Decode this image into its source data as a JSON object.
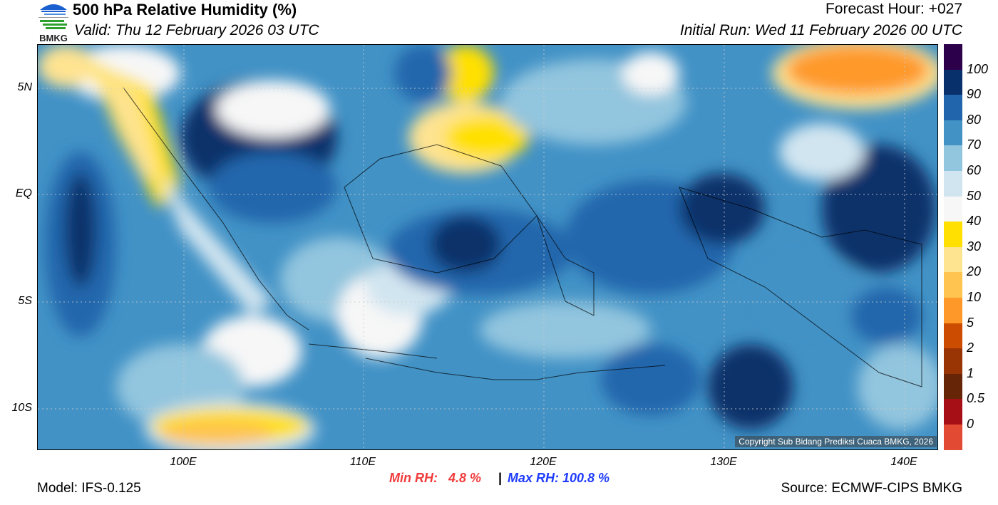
{
  "header": {
    "title": "500 hPa Relative Humidity (%)",
    "valid": "Valid: Thu 12 February 2026 03 UTC",
    "forecast_hour": "Forecast Hour: +027",
    "initial_run": "Initial Run: Wed 11 February 2026 00 UTC",
    "logo_text": "BMKG"
  },
  "map": {
    "lat_labels": [
      "5N",
      "EQ",
      "5S",
      "10S"
    ],
    "lon_labels": [
      "100E",
      "110E",
      "120E",
      "130E",
      "140E"
    ],
    "copyright": "Copyright Sub Bidang Prediksi Cuaca BMKG, 2026"
  },
  "colorbar": {
    "labels": [
      "100",
      "90",
      "80",
      "70",
      "60",
      "50",
      "40",
      "30",
      "20",
      "10",
      "5",
      "2",
      "1",
      "0.5",
      "0"
    ],
    "colors": [
      "#2d004b",
      "#08306b",
      "#2166ac",
      "#4292c6",
      "#92c5de",
      "#d1e5f0",
      "#f7f7f7",
      "#ffe000",
      "#fee391",
      "#fec44f",
      "#fe9929",
      "#cc4c02",
      "#993404",
      "#662506",
      "#a50f15",
      "#e34a33"
    ]
  },
  "footer": {
    "model": "Model: IFS-0.125",
    "min_rh": "Min RH:   4.8 %",
    "separator": "|",
    "max_rh": "Max RH: 100.8 %",
    "source": "Source: ECMWF-CIPS BMKG"
  }
}
